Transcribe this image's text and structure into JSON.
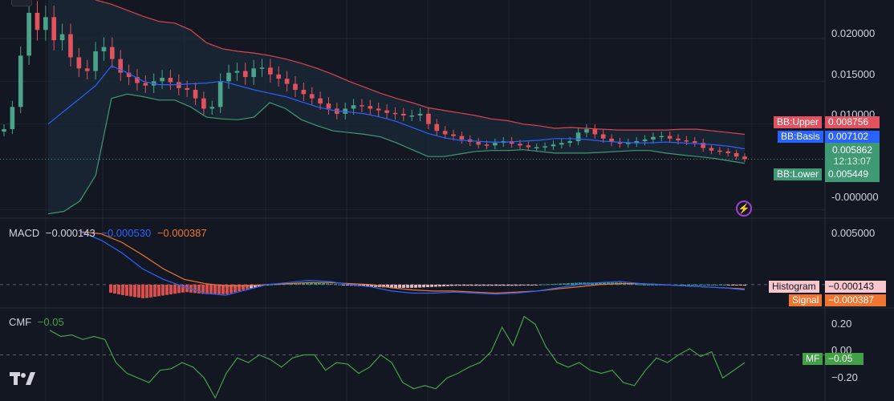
{
  "colors": {
    "background": "#131722",
    "bull": "#4aa38a",
    "bear": "#e2525e",
    "bb_upper": "#d9454f",
    "bb_basis": "#2962ff",
    "bb_lower": "#3f9a74",
    "bb_fill": "#1b2a38",
    "macd_line": "#2962ff",
    "signal_line": "#f07531",
    "cmf_line": "#43a047",
    "mf_tag": "#43a047",
    "histogram_tag": "#f8c7ce",
    "signal_tag": "#f07531",
    "bolt": "#9c43cf"
  },
  "price_axis": {
    "labels": [
      "0.020000",
      "0.015000",
      "0.010000",
      "-0.000000"
    ],
    "values": [
      0.02,
      0.015,
      0.01,
      0.0
    ]
  },
  "bb_tags": [
    {
      "name": "BB:Upper",
      "value": "0.008756",
      "color": "#e2525e",
      "bg_name": "#e2525e"
    },
    {
      "name": "BB:Basis",
      "value": "0.007102",
      "color": "#2962ff",
      "bg_name": "#2962ff"
    },
    {
      "name": "BB:Lower",
      "value": "0.005449",
      "color": "#3f9a74",
      "bg_name": "#3f9a74"
    }
  ],
  "current_price": {
    "value": "0.005862",
    "countdown": "12:13:07"
  },
  "macd": {
    "title": "MACD",
    "values": [
      "−0.000143",
      "−0.000530",
      "−0.000387"
    ],
    "axis_label": "0.005000",
    "tags": [
      {
        "name": "Histogram",
        "value": "−0.000143"
      },
      {
        "name": "Signal",
        "value": "−0.000387"
      }
    ]
  },
  "cmf": {
    "title": "CMF",
    "value": "−0.05",
    "axis_labels": [
      "0.20",
      "0.00",
      "−0.20"
    ],
    "axis_values": [
      0.2,
      0.0,
      -0.2
    ],
    "tag": {
      "name": "MF",
      "value": "−0.05"
    }
  },
  "chart_data": {
    "type": "line",
    "price_range": [
      -0.001,
      0.0245
    ],
    "candles_close": [
      0.0094,
      0.012,
      0.018,
      0.023,
      0.021,
      0.0225,
      0.0198,
      0.0205,
      0.0178,
      0.0165,
      0.0162,
      0.0185,
      0.019,
      0.0176,
      0.016,
      0.0155,
      0.0148,
      0.0145,
      0.015,
      0.0154,
      0.0149,
      0.0142,
      0.014,
      0.013,
      0.0118,
      0.012,
      0.015,
      0.016,
      0.0162,
      0.0155,
      0.0165,
      0.0166,
      0.0158,
      0.0153,
      0.0147,
      0.014,
      0.0135,
      0.013,
      0.0124,
      0.0118,
      0.0112,
      0.0118,
      0.0122,
      0.0121,
      0.0118,
      0.0116,
      0.0113,
      0.0112,
      0.011,
      0.011,
      0.0112,
      0.01,
      0.0092,
      0.0088,
      0.0086,
      0.0082,
      0.0079,
      0.0076,
      0.0075,
      0.0078,
      0.008,
      0.0077,
      0.0075,
      0.0073,
      0.0073,
      0.0074,
      0.0076,
      0.0078,
      0.008,
      0.009,
      0.0094,
      0.0088,
      0.0083,
      0.0079,
      0.0077,
      0.0078,
      0.008,
      0.0082,
      0.0085,
      0.0086,
      0.0083,
      0.0081,
      0.008,
      0.0078,
      0.0072,
      0.0069,
      0.0068,
      0.0066,
      0.0062,
      0.0059
    ],
    "bb_upper": [
      0.0265,
      0.0262,
      0.0255,
      0.0245,
      0.024,
      0.0233,
      0.0226,
      0.022,
      0.0218,
      0.021,
      0.0195,
      0.0188,
      0.0185,
      0.0183,
      0.018,
      0.0176,
      0.0171,
      0.0165,
      0.0158,
      0.015,
      0.0143,
      0.0136,
      0.013,
      0.0125,
      0.0119,
      0.0116,
      0.0113,
      0.011,
      0.0106,
      0.0104,
      0.01,
      0.0098,
      0.0095,
      0.0096,
      0.0095,
      0.0094,
      0.0093,
      0.0093,
      0.0093,
      0.0093,
      0.0094,
      0.0094,
      0.0092,
      0.009,
      0.0088
    ],
    "bb_basis": [
      0.01,
      0.0115,
      0.013,
      0.0145,
      0.0168,
      0.016,
      0.015,
      0.0146,
      0.0146,
      0.0147,
      0.0148,
      0.015,
      0.0145,
      0.014,
      0.0136,
      0.0132,
      0.0126,
      0.012,
      0.0116,
      0.0114,
      0.0112,
      0.0108,
      0.0103,
      0.0096,
      0.0089,
      0.0084,
      0.0081,
      0.008,
      0.0079,
      0.0079,
      0.008,
      0.0081,
      0.0083,
      0.0083,
      0.0082,
      0.008,
      0.0079,
      0.0078,
      0.0078,
      0.0079,
      0.0078,
      0.0077,
      0.0076,
      0.0074,
      0.0071
    ],
    "bb_lower": [
      -0.0005,
      -0.0002,
      0.001,
      0.004,
      0.013,
      0.0135,
      0.0132,
      0.0128,
      0.0128,
      0.012,
      0.0108,
      0.0106,
      0.0105,
      0.0108,
      0.0125,
      0.0118,
      0.0105,
      0.0098,
      0.0092,
      0.009,
      0.0088,
      0.0085,
      0.0078,
      0.007,
      0.0062,
      0.0062,
      0.0065,
      0.0068,
      0.0069,
      0.0069,
      0.007,
      0.0068,
      0.0066,
      0.0066,
      0.0066,
      0.0067,
      0.0068,
      0.0069,
      0.0069,
      0.0066,
      0.0064,
      0.0062,
      0.006,
      0.0057,
      0.0054
    ],
    "macd_line": [
      0.005,
      0.0042,
      0.003,
      0.0015,
      0.0005,
      -0.0002,
      -0.0008,
      -0.001,
      -0.0005,
      0.0,
      0.0002,
      0.0004,
      0.0003,
      0.0,
      -0.0002,
      -0.0006,
      -0.0008,
      -0.0008,
      -0.0007,
      -0.0008,
      -0.0009,
      -0.0008,
      -0.0006,
      -0.0003,
      0.0,
      0.0002,
      0.0003,
      0.0001,
      0.0,
      -0.0001,
      -0.0002,
      -0.0003,
      -0.0005
    ],
    "signal_line": [
      0.005,
      0.0048,
      0.004,
      0.0028,
      0.0015,
      0.0005,
      0.0001,
      -0.0001,
      -0.0001,
      0.0,
      0.0001,
      0.0002,
      0.0002,
      0.0001,
      0.0,
      -0.0003,
      -0.0005,
      -0.0006,
      -0.0006,
      -0.0007,
      -0.0008,
      -0.0007,
      -0.0006,
      -0.0004,
      -0.0002,
      0.0,
      0.0001,
      0.0001,
      0.0,
      -0.0001,
      -0.0002,
      -0.0003,
      -0.0004
    ],
    "macd_range": [
      -0.0022,
      0.0062
    ],
    "cmf_values": [
      0.16,
      0.12,
      0.13,
      0.1,
      0.12,
      0.1,
      -0.05,
      -0.12,
      -0.15,
      -0.18,
      -0.1,
      -0.09,
      -0.05,
      -0.08,
      -0.15,
      -0.28,
      -0.12,
      -0.02,
      -0.05,
      0.0,
      -0.03,
      -0.08,
      -0.02,
      0.0,
      0.0,
      -0.1,
      -0.05,
      -0.06,
      -0.12,
      -0.08,
      0.0,
      -0.05,
      -0.18,
      -0.22,
      -0.2,
      -0.22,
      -0.15,
      -0.12,
      -0.08,
      -0.05,
      0.02,
      0.18,
      0.06,
      0.25,
      0.2,
      0.05,
      -0.05,
      -0.08,
      -0.05,
      -0.1,
      -0.12,
      -0.1,
      -0.18,
      -0.2,
      -0.1,
      -0.02,
      -0.05,
      0.0,
      0.04,
      -0.01,
      0.02,
      -0.15,
      -0.1,
      -0.05
    ],
    "cmf_range": [
      -0.3,
      0.3
    ]
  }
}
